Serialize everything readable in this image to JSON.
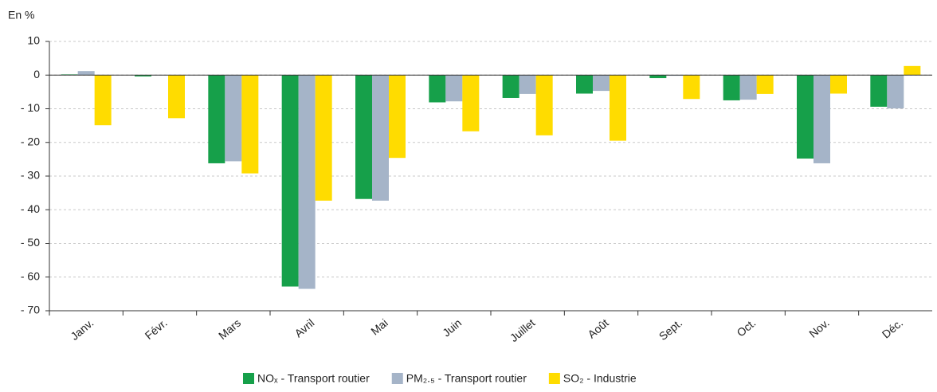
{
  "chart_data": {
    "type": "bar",
    "ylabel": "En %",
    "categories": [
      "Janv.",
      "Févr.",
      "Mars",
      "Avril",
      "Mai",
      "Juin",
      "Juillet",
      "Août",
      "Sept.",
      "Oct.",
      "Nov.",
      "Déc."
    ],
    "series": [
      {
        "name": "NOₓ - Transport routier",
        "color": "#16a04a",
        "values": [
          0.2,
          -0.4,
          -26.2,
          -62.8,
          -36.8,
          -8.1,
          -6.8,
          -5.5,
          -0.9,
          -7.5,
          -24.8,
          -9.4
        ]
      },
      {
        "name": "PM₂.₅ - Transport routier",
        "color": "#a5b4c8",
        "values": [
          1.2,
          -0.1,
          -25.6,
          -63.5,
          -37.3,
          -7.8,
          -5.6,
          -4.7,
          -0.2,
          -7.3,
          -26.2,
          -9.9
        ]
      },
      {
        "name": "SO₂ - Industrie",
        "color": "#ffdc00",
        "values": [
          -14.9,
          -12.8,
          -29.2,
          -37.3,
          -24.6,
          -16.7,
          -17.9,
          -19.5,
          -7.1,
          -5.6,
          -5.5,
          2.7
        ]
      }
    ],
    "ylim": [
      -70,
      10
    ],
    "yticks": [
      {
        "value": -70,
        "label": "- 70"
      },
      {
        "value": -60,
        "label": "- 60"
      },
      {
        "value": -50,
        "label": "- 50"
      },
      {
        "value": -40,
        "label": "- 40"
      },
      {
        "value": -30,
        "label": "- 30"
      },
      {
        "value": -20,
        "label": "- 20"
      },
      {
        "value": -10,
        "label": "- 10"
      },
      0,
      10
    ],
    "grid": true
  }
}
